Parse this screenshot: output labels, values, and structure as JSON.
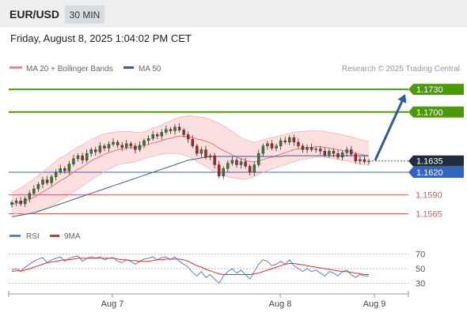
{
  "header": {
    "symbol": "EUR/USD",
    "timeframe": "30 MIN",
    "timestamp": "Friday, August 8, 2025 1:04:02 PM CET",
    "research": "Research © 2025 Trading Central"
  },
  "legend": {
    "ma20_label": "MA 20 + Bollinger Bands",
    "ma50_label": "MA 50",
    "rsi_label": "RSI",
    "ma9_label": "9MA"
  },
  "colors": {
    "green": "#4c9a06",
    "blue": "#3065c6",
    "red": "#e05a5a",
    "price_tag": "#1f2d3d",
    "ma20": "#e57373",
    "ma50": "#3a5a9c",
    "band_fill": "#fbd6d6",
    "rsi": "#5b80d6",
    "rsi_ma": "#e03030",
    "candle_up": "#2e7d32",
    "candle_down": "#b71c1c",
    "arrow": "#2a5c9e"
  },
  "chart_data": [
    {
      "type": "candlestick",
      "ylim": [
        1.1555,
        1.1748
      ],
      "x_labels": [
        "Aug 7",
        "Aug 8",
        "Aug 9"
      ],
      "current_price": 1.1635,
      "levels": [
        {
          "value": 1.173,
          "label": "1.1730",
          "kind": "resistance",
          "color": "#4c9a06"
        },
        {
          "value": 1.17,
          "label": "1.1700",
          "kind": "resistance",
          "color": "#4c9a06"
        },
        {
          "value": 1.162,
          "label": "1.1620",
          "kind": "pivot",
          "color": "#3065c6"
        },
        {
          "value": 1.159,
          "label": "1.1590",
          "kind": "support",
          "color": "#e05a5a"
        },
        {
          "value": 1.1565,
          "label": "1.1565",
          "kind": "support",
          "color": "#e05a5a"
        }
      ],
      "target_arrow": {
        "from": 1.1636,
        "to": 1.173
      },
      "closes": [
        1.158,
        1.1582,
        1.1578,
        1.1585,
        1.1592,
        1.1598,
        1.1604,
        1.161,
        1.1606,
        1.1614,
        1.162,
        1.1625,
        1.1622,
        1.1631,
        1.1638,
        1.1642,
        1.1636,
        1.1645,
        1.165,
        1.1647,
        1.1655,
        1.1652,
        1.1657,
        1.166,
        1.1656,
        1.1653,
        1.1658,
        1.1655,
        1.165,
        1.1656,
        1.1662,
        1.1665,
        1.167,
        1.1668,
        1.1673,
        1.1677,
        1.1675,
        1.168,
        1.1676,
        1.167,
        1.1664,
        1.1655,
        1.1645,
        1.165,
        1.164,
        1.1642,
        1.163,
        1.1615,
        1.1625,
        1.1632,
        1.1636,
        1.163,
        1.1634,
        1.1628,
        1.162,
        1.163,
        1.1645,
        1.1655,
        1.1658,
        1.1652,
        1.1655,
        1.1662,
        1.166,
        1.1666,
        1.166,
        1.1655,
        1.165,
        1.1653,
        1.165,
        1.1651,
        1.1648,
        1.1643,
        1.1648,
        1.1645,
        1.164,
        1.1646,
        1.165,
        1.1644,
        1.1635,
        1.1637,
        1.1634,
        1.1635
      ],
      "ma20": [
        1.1578,
        1.1579,
        1.158,
        1.1582,
        1.1584,
        1.1587,
        1.159,
        1.1594,
        1.1597,
        1.1601,
        1.1605,
        1.1609,
        1.1612,
        1.1616,
        1.162,
        1.1624,
        1.1627,
        1.1631,
        1.1635,
        1.1638,
        1.1641,
        1.1644,
        1.1646,
        1.1648,
        1.165,
        1.1651,
        1.1652,
        1.1653,
        1.1653,
        1.1654,
        1.1655,
        1.1657,
        1.1659,
        1.166,
        1.1662,
        1.1664,
        1.1665,
        1.1667,
        1.1668,
        1.1668,
        1.1667,
        1.1666,
        1.1664,
        1.1663,
        1.1661,
        1.1659,
        1.1656,
        1.1652,
        1.1649,
        1.1646,
        1.1643,
        1.164,
        1.1638,
        1.1636,
        1.1634,
        1.1634,
        1.1635,
        1.1637,
        1.1639,
        1.164,
        1.1642,
        1.1644,
        1.1646,
        1.1648,
        1.165,
        1.1651,
        1.1652,
        1.1653,
        1.1653,
        1.1654,
        1.1654,
        1.1653,
        1.1652,
        1.1651,
        1.165,
        1.1649,
        1.1648,
        1.1647,
        1.1645,
        1.1644,
        1.1643,
        1.1642
      ],
      "band_upper": [
        1.1593,
        1.1596,
        1.1599,
        1.1603,
        1.1607,
        1.1611,
        1.1616,
        1.1621,
        1.1625,
        1.163,
        1.1635,
        1.1639,
        1.1642,
        1.1646,
        1.165,
        1.1654,
        1.1656,
        1.166,
        1.1664,
        1.1666,
        1.1669,
        1.1671,
        1.1672,
        1.1673,
        1.1674,
        1.1674,
        1.1674,
        1.1674,
        1.1673,
        1.1673,
        1.1674,
        1.1676,
        1.1679,
        1.168,
        1.1683,
        1.1686,
        1.1688,
        1.1691,
        1.1693,
        1.1694,
        1.1695,
        1.1695,
        1.1694,
        1.1693,
        1.1692,
        1.169,
        1.1688,
        1.1685,
        1.1682,
        1.1678,
        1.1674,
        1.167,
        1.1666,
        1.1663,
        1.1661,
        1.166,
        1.1661,
        1.1663,
        1.1665,
        1.1666,
        1.1667,
        1.1669,
        1.167,
        1.1672,
        1.1673,
        1.1674,
        1.1674,
        1.1675,
        1.1675,
        1.1675,
        1.1675,
        1.1674,
        1.1673,
        1.1672,
        1.1671,
        1.167,
        1.1668,
        1.1667,
        1.1665,
        1.1664,
        1.1662,
        1.1661
      ],
      "band_lower": [
        1.1566,
        1.1565,
        1.1564,
        1.1565,
        1.1566,
        1.1568,
        1.1569,
        1.1571,
        1.1573,
        1.1576,
        1.1579,
        1.1583,
        1.1586,
        1.159,
        1.1594,
        1.1598,
        1.1602,
        1.1606,
        1.161,
        1.1614,
        1.1617,
        1.1621,
        1.1624,
        1.1627,
        1.163,
        1.1631,
        1.1632,
        1.1633,
        1.1634,
        1.1636,
        1.1638,
        1.164,
        1.1641,
        1.1643,
        1.1644,
        1.1645,
        1.1645,
        1.1645,
        1.1645,
        1.1643,
        1.1641,
        1.1638,
        1.1634,
        1.1631,
        1.1628,
        1.1624,
        1.1621,
        1.1618,
        1.1616,
        1.1614,
        1.1613,
        1.1612,
        1.1611,
        1.1611,
        1.1612,
        1.1614,
        1.1617,
        1.162,
        1.1622,
        1.1624,
        1.1626,
        1.1628,
        1.163,
        1.1632,
        1.1634,
        1.1636,
        1.1637,
        1.1638,
        1.1639,
        1.164,
        1.164,
        1.164,
        1.1639,
        1.1638,
        1.1637,
        1.1636,
        1.1635,
        1.1634,
        1.1632,
        1.1631,
        1.163,
        1.1629
      ],
      "ma50": [
        1.1561,
        1.1562,
        1.1563,
        1.1564,
        1.1565,
        1.1566,
        1.1568,
        1.157,
        1.1572,
        1.1574,
        1.1576,
        1.1578,
        1.158,
        1.1582,
        1.1584,
        1.1586,
        1.1588,
        1.159,
        1.1592,
        1.1594,
        1.1596,
        1.1598,
        1.16,
        1.1602,
        1.1604,
        1.1606,
        1.1608,
        1.161,
        1.1612,
        1.1614,
        1.1616,
        1.1618,
        1.162,
        1.1622,
        1.1624,
        1.1626,
        1.1628,
        1.163,
        1.1632,
        1.1634,
        1.1636,
        1.1637,
        1.1638,
        1.1639,
        1.164,
        1.1641,
        1.1641,
        1.1641,
        1.1641,
        1.1641,
        1.1641,
        1.1641,
        1.1641,
        1.1641,
        1.1641,
        1.1641,
        1.1641,
        1.1641,
        1.1641,
        1.1641,
        1.1641,
        1.1641,
        1.1642,
        1.1642,
        1.1642,
        1.1642,
        1.1642,
        1.1642,
        1.1642,
        1.1642,
        1.1642,
        1.1642,
        1.1642,
        1.1642,
        1.1642,
        1.1642,
        1.1642,
        1.1642,
        1.1642,
        1.1642,
        1.1642,
        1.1642
      ]
    },
    {
      "type": "line",
      "ylim": [
        20,
        80
      ],
      "yticks": [
        70,
        50,
        30
      ],
      "rsi": [
        48,
        50,
        46,
        52,
        56,
        60,
        63,
        65,
        58,
        62,
        64,
        66,
        60,
        64,
        66,
        67,
        60,
        64,
        66,
        64,
        66,
        62,
        64,
        65,
        60,
        58,
        62,
        60,
        56,
        60,
        63,
        64,
        66,
        62,
        65,
        66,
        62,
        66,
        60,
        56,
        52,
        45,
        40,
        46,
        38,
        42,
        36,
        30,
        40,
        46,
        50,
        44,
        48,
        42,
        36,
        46,
        56,
        62,
        60,
        54,
        56,
        60,
        56,
        62,
        54,
        50,
        46,
        50,
        46,
        48,
        44,
        40,
        46,
        44,
        40,
        46,
        48,
        42,
        38,
        42,
        40,
        40
      ],
      "rsi_ma": [
        46,
        47,
        47,
        48,
        50,
        52,
        54,
        56,
        58,
        59,
        60,
        61,
        62,
        62,
        63,
        64,
        64,
        64,
        64,
        64,
        64,
        64,
        64,
        64,
        63,
        62,
        62,
        61,
        61,
        60,
        60,
        60,
        61,
        62,
        62,
        63,
        63,
        63,
        63,
        62,
        60,
        57,
        54,
        52,
        49,
        47,
        45,
        43,
        42,
        42,
        42,
        42,
        42,
        42,
        42,
        43,
        44,
        46,
        48,
        50,
        52,
        54,
        56,
        57,
        57,
        56,
        55,
        54,
        53,
        52,
        51,
        50,
        49,
        48,
        47,
        46,
        46,
        45,
        44,
        43,
        42,
        42
      ]
    }
  ]
}
